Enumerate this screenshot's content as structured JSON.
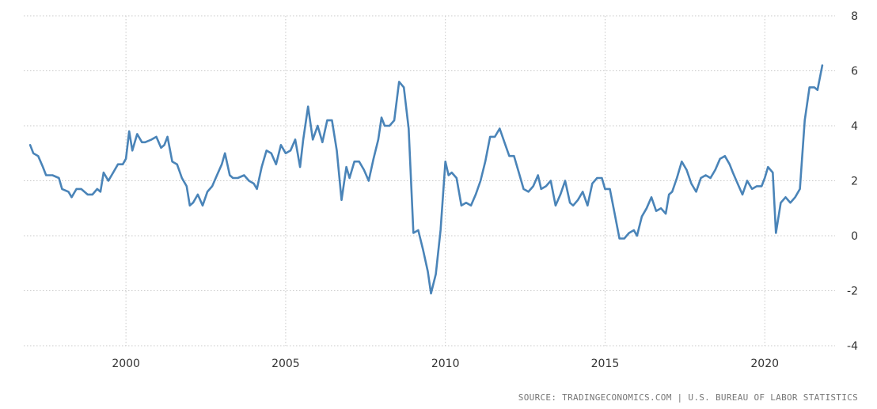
{
  "source_text": "SOURCE: TRADINGECONOMICS.COM | U.S. BUREAU OF LABOR STATISTICS",
  "colors": {
    "line": "#4a84b8",
    "grid": "#c8c8c8",
    "text": "#333333"
  },
  "chart_data": {
    "type": "line",
    "title": "",
    "xlabel": "",
    "ylabel": "",
    "xlim": [
      1996.8,
      2022.2
    ],
    "ylim": [
      -4,
      8
    ],
    "x_ticks": [
      2000,
      2005,
      2010,
      2015,
      2020
    ],
    "x_tick_labels": [
      "2000",
      "2005",
      "2010",
      "2015",
      "2020"
    ],
    "y_ticks": [
      -4,
      -2,
      0,
      2,
      4,
      6,
      8
    ],
    "y_tick_labels": [
      "-4",
      "-2",
      "0",
      "2",
      "4",
      "6",
      "8"
    ],
    "grid": true,
    "y_axis_side": "right",
    "series": [
      {
        "x": [
          1997.0,
          1997.1,
          1997.25,
          1997.4,
          1997.5,
          1997.7,
          1997.9,
          1998.0,
          1998.2,
          1998.3,
          1998.45,
          1998.6,
          1998.8,
          1998.95,
          1999.1,
          1999.2,
          1999.3,
          1999.45,
          1999.6,
          1999.75,
          1999.9,
          2000.0,
          2000.1,
          2000.2,
          2000.35,
          2000.5,
          2000.6,
          2000.8,
          2000.95,
          2001.1,
          2001.2,
          2001.3,
          2001.45,
          2001.6,
          2001.75,
          2001.9,
          2002.0,
          2002.1,
          2002.25,
          2002.4,
          2002.55,
          2002.7,
          2002.85,
          2003.0,
          2003.1,
          2003.25,
          2003.35,
          2003.5,
          2003.7,
          2003.85,
          2004.0,
          2004.1,
          2004.25,
          2004.4,
          2004.55,
          2004.7,
          2004.85,
          2005.0,
          2005.15,
          2005.3,
          2005.45,
          2005.55,
          2005.7,
          2005.85,
          2006.0,
          2006.15,
          2006.3,
          2006.45,
          2006.6,
          2006.75,
          2006.9,
          2007.0,
          2007.15,
          2007.3,
          2007.45,
          2007.6,
          2007.75,
          2007.9,
          2008.0,
          2008.1,
          2008.25,
          2008.4,
          2008.55,
          2008.7,
          2008.85,
          2009.0,
          2009.15,
          2009.3,
          2009.45,
          2009.55,
          2009.7,
          2009.85,
          2010.0,
          2010.1,
          2010.2,
          2010.35,
          2010.5,
          2010.65,
          2010.8,
          2010.95,
          2011.1,
          2011.25,
          2011.4,
          2011.55,
          2011.7,
          2011.85,
          2012.0,
          2012.15,
          2012.3,
          2012.45,
          2012.6,
          2012.75,
          2012.9,
          2013.0,
          2013.15,
          2013.3,
          2013.45,
          2013.6,
          2013.75,
          2013.9,
          2014.0,
          2014.15,
          2014.3,
          2014.45,
          2014.6,
          2014.75,
          2014.9,
          2015.0,
          2015.15,
          2015.3,
          2015.45,
          2015.6,
          2015.75,
          2015.9,
          2016.0,
          2016.15,
          2016.3,
          2016.45,
          2016.6,
          2016.75,
          2016.9,
          2017.0,
          2017.1,
          2017.25,
          2017.4,
          2017.55,
          2017.7,
          2017.85,
          2018.0,
          2018.15,
          2018.3,
          2018.45,
          2018.6,
          2018.75,
          2018.9,
          2019.0,
          2019.15,
          2019.3,
          2019.45,
          2019.6,
          2019.75,
          2019.9,
          2020.0,
          2020.1,
          2020.25,
          2020.35,
          2020.5,
          2020.65,
          2020.8,
          2020.95,
          2021.1,
          2021.25,
          2021.4,
          2021.55,
          2021.65,
          2021.8
        ],
        "values": [
          3.3,
          3.0,
          2.9,
          2.5,
          2.2,
          2.2,
          2.1,
          1.7,
          1.6,
          1.4,
          1.7,
          1.7,
          1.5,
          1.5,
          1.7,
          1.6,
          2.3,
          2.0,
          2.3,
          2.6,
          2.6,
          2.8,
          3.8,
          3.1,
          3.7,
          3.4,
          3.4,
          3.5,
          3.6,
          3.2,
          3.3,
          3.6,
          2.7,
          2.6,
          2.1,
          1.8,
          1.1,
          1.2,
          1.5,
          1.1,
          1.6,
          1.8,
          2.2,
          2.6,
          3.0,
          2.2,
          2.1,
          2.1,
          2.2,
          2.0,
          1.9,
          1.7,
          2.5,
          3.1,
          3.0,
          2.6,
          3.3,
          3.0,
          3.1,
          3.5,
          2.5,
          3.5,
          4.7,
          3.5,
          4.0,
          3.4,
          4.2,
          4.2,
          3.1,
          1.3,
          2.5,
          2.1,
          2.7,
          2.7,
          2.4,
          2.0,
          2.8,
          3.5,
          4.3,
          4.0,
          4.0,
          4.2,
          5.6,
          5.4,
          3.9,
          0.1,
          0.2,
          -0.5,
          -1.3,
          -2.1,
          -1.4,
          0.2,
          2.7,
          2.2,
          2.3,
          2.1,
          1.1,
          1.2,
          1.1,
          1.5,
          2.0,
          2.7,
          3.6,
          3.6,
          3.9,
          3.4,
          2.9,
          2.9,
          2.3,
          1.7,
          1.6,
          1.8,
          2.2,
          1.7,
          1.8,
          2.0,
          1.1,
          1.5,
          2.0,
          1.2,
          1.1,
          1.3,
          1.6,
          1.1,
          1.9,
          2.1,
          2.1,
          1.7,
          1.7,
          0.8,
          -0.1,
          -0.1,
          0.1,
          0.2,
          0.0,
          0.7,
          1.0,
          1.4,
          0.9,
          1.0,
          0.8,
          1.5,
          1.6,
          2.1,
          2.7,
          2.4,
          1.9,
          1.6,
          2.1,
          2.2,
          2.1,
          2.4,
          2.8,
          2.9,
          2.6,
          2.3,
          1.9,
          1.5,
          2.0,
          1.7,
          1.8,
          1.8,
          2.1,
          2.5,
          2.3,
          0.1,
          1.2,
          1.4,
          1.2,
          1.4,
          1.7,
          4.2,
          5.4,
          5.4,
          5.3,
          6.2
        ]
      }
    ]
  }
}
